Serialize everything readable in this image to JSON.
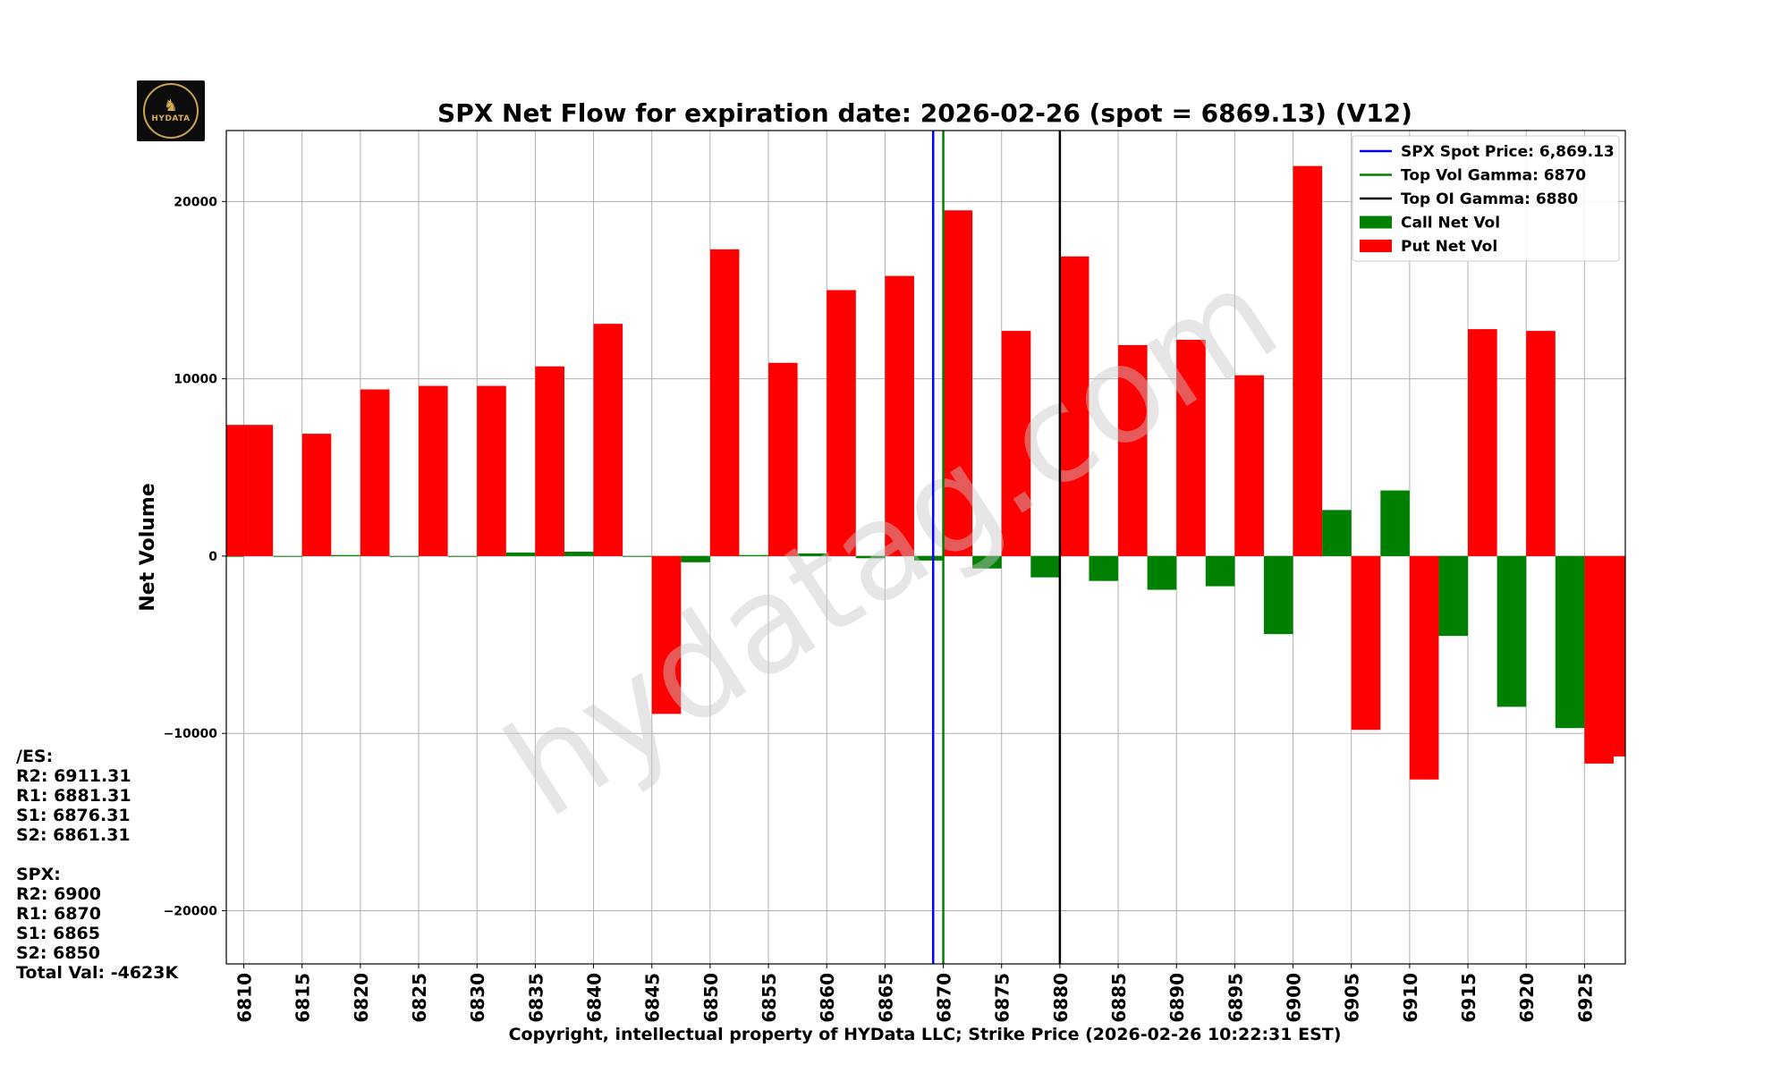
{
  "chart_data": {
    "type": "bar",
    "title": "SPX Net Flow for expiration date: 2026-02-26 (spot = 6869.13) (V12)",
    "xlabel": "Copyright, intellectual property of HYData LLC; Strike Price (2026-02-26 10:22:31 EST)",
    "ylabel": "Net Volume",
    "ylim": [
      -23000,
      24000
    ],
    "yticks": [
      -20000,
      -10000,
      0,
      10000,
      20000
    ],
    "ytick_labels": [
      "−20000",
      "−10000",
      "0",
      "10000",
      "20000"
    ],
    "xlim": [
      6808.5,
      6928.5
    ],
    "categories": [
      6810,
      6815,
      6820,
      6825,
      6830,
      6835,
      6840,
      6845,
      6850,
      6855,
      6860,
      6865,
      6870,
      6875,
      6880,
      6885,
      6890,
      6895,
      6900,
      6905,
      6910,
      6915,
      6920,
      6925
    ],
    "category_labels": [
      "6810",
      "6815",
      "6820",
      "6825",
      "6830",
      "6835",
      "6840",
      "6845",
      "6850",
      "6855",
      "6860",
      "6865",
      "6870",
      "6875",
      "6880",
      "6885",
      "6890",
      "6895",
      "6900",
      "6905",
      "6910",
      "6915",
      "6920",
      "6925"
    ],
    "grid": true,
    "legend_position": "top-right",
    "series": [
      {
        "name": "Call Net Vol",
        "color": "#008000",
        "offset": -1.25,
        "values": [
          0,
          0,
          60,
          0,
          0,
          200,
          250,
          0,
          -350,
          60,
          150,
          -120,
          -250,
          -700,
          -1200,
          -1400,
          -1900,
          -1700,
          -4400,
          2600,
          3700,
          -4500,
          -8500,
          -9700
        ]
      },
      {
        "name": "Put Net Vol",
        "color": "#ff0000",
        "offset": 1.25,
        "values": [
          7400,
          6900,
          9400,
          9600,
          9600,
          10700,
          13100,
          -8900,
          17300,
          10900,
          15000,
          15800,
          19500,
          12700,
          16900,
          11900,
          12200,
          10200,
          22000,
          -9800,
          -12600,
          12800,
          12700,
          -11700
        ]
      }
    ],
    "extra_put_left": {
      "x": 6808.75,
      "value": 7400
    },
    "extra_put_right": {
      "x": 6928.75,
      "value": -11300
    },
    "vlines": [
      {
        "name": "SPX Spot Price: 6,869.13",
        "x": 6869.13,
        "color": "#0000ff"
      },
      {
        "name": "Top Vol Gamma: 6870",
        "x": 6870,
        "color": "#008000"
      },
      {
        "name": "Top OI Gamma: 6880",
        "x": 6880,
        "color": "#000000"
      }
    ],
    "watermark": "hydatag.com"
  },
  "logo": {
    "text": "HYDATA"
  },
  "side_panel": {
    "es_header": "/ES:",
    "es_r2": "R2: 6911.31",
    "es_r1": "R1: 6881.31",
    "es_s1": "S1: 6876.31",
    "es_s2": "S2: 6861.31",
    "spx_header": "SPX:",
    "spx_r2": "R2: 6900",
    "spx_r1": "R1: 6870",
    "spx_s1": "S1: 6865",
    "spx_s2": "S2: 6850",
    "total_val": "Total Val: -4623K"
  }
}
